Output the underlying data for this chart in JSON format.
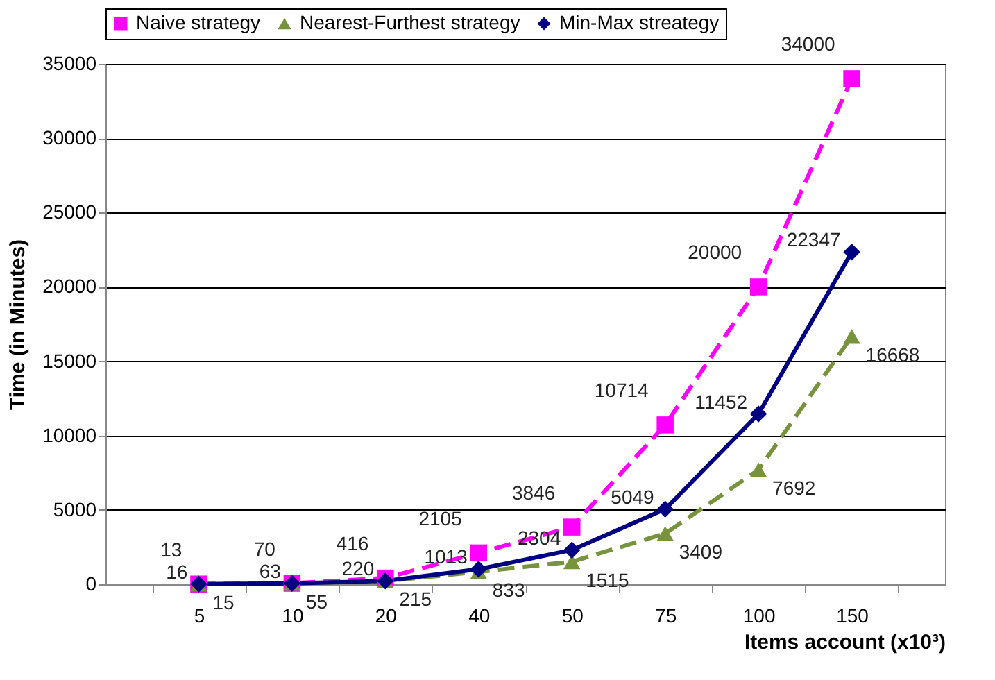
{
  "chart_data": {
    "type": "line",
    "xlabel": "Items account (x10³)",
    "ylabel": "Time (in Minutes)",
    "categories": [
      "5",
      "10",
      "20",
      "40",
      "50",
      "75",
      "100",
      "150"
    ],
    "series": [
      {
        "name": "Naive strategy",
        "color": "#ff00ff",
        "marker": "square",
        "line_style": "dashed",
        "values": [
          13,
          70,
          416,
          2105,
          3846,
          10714,
          20000,
          34000
        ]
      },
      {
        "name": "Nearest-Furthest strategy",
        "color": "#77933c",
        "marker": "triangle",
        "line_style": "dashed",
        "values": [
          15,
          55,
          215,
          833,
          1515,
          3409,
          7692,
          16668
        ]
      },
      {
        "name": "Min-Max streategy",
        "color": "#000080",
        "marker": "diamond",
        "line_style": "solid",
        "values": [
          16,
          63,
          220,
          1013,
          2304,
          5049,
          11452,
          22347
        ]
      }
    ],
    "ylim": [
      0,
      35000
    ],
    "yticks": [
      0,
      5000,
      10000,
      15000,
      20000,
      25000,
      30000,
      35000
    ],
    "grid": "y",
    "legend": "top",
    "data_labels": true
  }
}
